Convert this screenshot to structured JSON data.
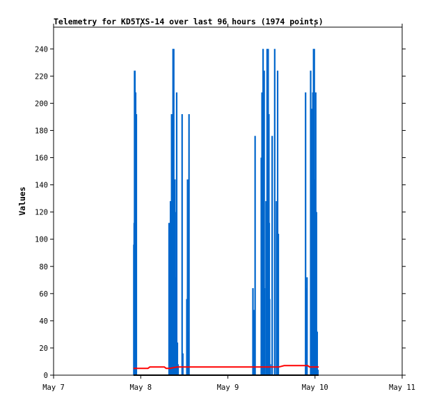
{
  "chart_data": {
    "type": "line",
    "title": "Telemetry for KD5TXS-14 over last 96 hours (1974 points)",
    "xlabel": "",
    "ylabel": "Values",
    "xlim": [
      "May 7",
      "May 11"
    ],
    "ylim": [
      0,
      256
    ],
    "x_ticks": [
      "May 7",
      "May 8",
      "May 9",
      "May 10",
      "May 11"
    ],
    "y_ticks": [
      0,
      20,
      40,
      60,
      80,
      100,
      120,
      140,
      160,
      180,
      200,
      220,
      240
    ],
    "grid": false,
    "legend": "none",
    "series": [
      {
        "color": "#0066cc",
        "style": "spikes",
        "x_hours": [
          22.1,
          22.2,
          22.3,
          22.4,
          22.5,
          22.6,
          22.7,
          22.8,
          23.0,
          31.8,
          32.2,
          32.5,
          32.7,
          32.9,
          33.1,
          33.2,
          33.4,
          33.5,
          33.7,
          33.9,
          34.1,
          34.3,
          34.6,
          35.4,
          35.6,
          36.7,
          36.9,
          37.1,
          37.3,
          54.9,
          55.1,
          55.3,
          55.5,
          57.2,
          57.4,
          57.6,
          57.7,
          57.8,
          58.0,
          58.1,
          58.3,
          58.5,
          58.8,
          59.0,
          59.1,
          59.3,
          59.4,
          59.5,
          59.6,
          59.7,
          59.9,
          60.2,
          60.9,
          61.4,
          61.7,
          61.9,
          69.4,
          69.6,
          69.8,
          70.8,
          71.0,
          71.1,
          71.2,
          71.3,
          71.4,
          71.5,
          71.6,
          71.7,
          71.8,
          71.9,
          72.0,
          72.1,
          72.2,
          72.3,
          72.4,
          72.5,
          72.6,
          72.8,
          72.9
        ],
        "values": [
          96,
          112,
          224,
          224,
          208,
          208,
          192,
          192,
          0,
          112,
          128,
          192,
          192,
          240,
          240,
          80,
          144,
          120,
          72,
          208,
          24,
          8,
          0,
          192,
          16,
          56,
          144,
          32,
          192,
          64,
          48,
          40,
          176,
          160,
          208,
          120,
          240,
          176,
          224,
          64,
          0,
          128,
          240,
          176,
          240,
          192,
          112,
          56,
          0,
          8,
          0,
          176,
          240,
          128,
          224,
          104,
          208,
          64,
          72,
          224,
          196,
          140,
          84,
          28,
          208,
          176,
          240,
          208,
          240,
          144,
          72,
          56,
          208,
          32,
          120,
          16,
          32,
          4,
          0
        ]
      },
      {
        "color": "#ff0000",
        "style": "line",
        "x_hours": [
          22.0,
          26.0,
          26.5,
          30.5,
          31.0,
          32.0,
          34.0,
          36.0,
          38.0,
          42.0,
          46.0,
          50.0,
          54.0,
          58.0,
          62.0,
          63.5,
          66.0,
          70.0,
          70.5,
          72.0,
          73.0
        ],
        "values": [
          5,
          5,
          6,
          6,
          5,
          5,
          6,
          6,
          6,
          6,
          6,
          6,
          6,
          6,
          6,
          7,
          7,
          7,
          6,
          6,
          6
        ]
      },
      {
        "color": "#000000",
        "style": "line",
        "x_hours": [
          22.0,
          73.0
        ],
        "values": [
          0,
          0
        ]
      }
    ]
  }
}
